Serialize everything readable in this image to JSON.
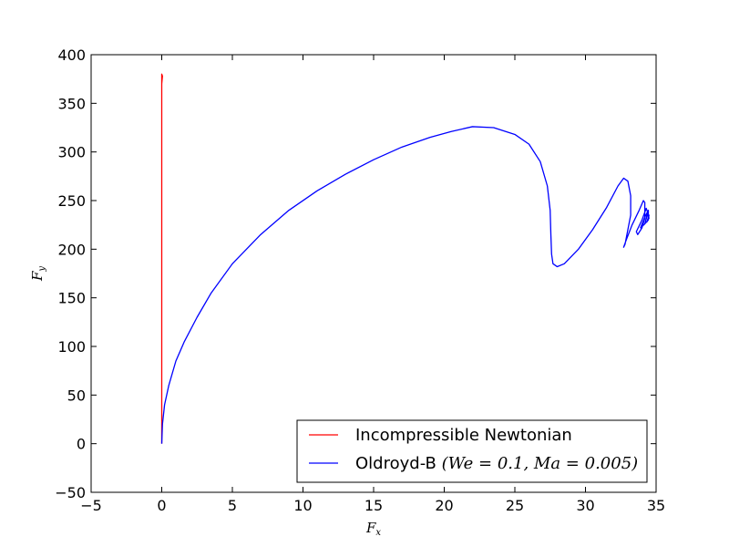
{
  "chart_data": {
    "type": "line",
    "title": "",
    "xlabel": "F",
    "xlabel_sub": "x",
    "ylabel": "F",
    "ylabel_sub": "y",
    "xlim": [
      -5,
      35
    ],
    "ylim": [
      -50,
      400
    ],
    "xticks": [
      -5,
      0,
      5,
      10,
      15,
      20,
      25,
      30,
      35
    ],
    "yticks": [
      -50,
      0,
      50,
      100,
      150,
      200,
      250,
      300,
      350,
      400
    ],
    "xtick_labels": [
      "−5",
      "0",
      "5",
      "10",
      "15",
      "20",
      "25",
      "30",
      "35"
    ],
    "ytick_labels": [
      "−50",
      "0",
      "50",
      "100",
      "150",
      "200",
      "250",
      "300",
      "350",
      "400"
    ],
    "grid": false,
    "legend_position": "bottom-right",
    "series": [
      {
        "name": "Incompressible Newtonian",
        "color": "#ff0000",
        "points": [
          [
            0.0,
            0
          ],
          [
            0.0,
            100
          ],
          [
            0.0,
            250
          ],
          [
            0.0,
            375
          ],
          [
            0.0,
            380
          ],
          [
            0.05,
            378
          ],
          [
            0.0,
            370
          ]
        ]
      },
      {
        "name_text": "Oldroyd-B ",
        "name_math": "(We = 0.1, Ma = 0.005)",
        "color": "#0000ff",
        "points": [
          [
            0.0,
            0
          ],
          [
            0.05,
            20
          ],
          [
            0.2,
            40
          ],
          [
            0.5,
            60
          ],
          [
            1.0,
            85
          ],
          [
            1.6,
            105
          ],
          [
            2.5,
            130
          ],
          [
            3.5,
            155
          ],
          [
            5.0,
            185
          ],
          [
            7.0,
            215
          ],
          [
            9.0,
            240
          ],
          [
            11.0,
            260
          ],
          [
            13.0,
            277
          ],
          [
            15.0,
            292
          ],
          [
            17.0,
            305
          ],
          [
            19.0,
            315
          ],
          [
            20.5,
            321
          ],
          [
            22.0,
            326
          ],
          [
            23.5,
            325
          ],
          [
            25.0,
            318
          ],
          [
            26.0,
            308
          ],
          [
            26.8,
            290
          ],
          [
            27.3,
            265
          ],
          [
            27.5,
            240
          ],
          [
            27.55,
            215
          ],
          [
            27.6,
            195
          ],
          [
            27.7,
            185
          ],
          [
            28.0,
            182
          ],
          [
            28.5,
            185
          ],
          [
            29.5,
            200
          ],
          [
            30.5,
            220
          ],
          [
            31.5,
            243
          ],
          [
            32.3,
            265
          ],
          [
            32.7,
            273
          ],
          [
            33.0,
            270
          ],
          [
            33.2,
            255
          ],
          [
            33.2,
            235
          ],
          [
            33.0,
            220
          ],
          [
            32.8,
            205
          ],
          [
            32.7,
            202
          ],
          [
            32.9,
            210
          ],
          [
            33.3,
            225
          ],
          [
            33.8,
            240
          ],
          [
            34.1,
            250
          ],
          [
            34.2,
            248
          ],
          [
            34.2,
            232
          ],
          [
            34.0,
            222
          ],
          [
            33.7,
            215
          ],
          [
            33.6,
            218
          ],
          [
            34.0,
            230
          ],
          [
            34.3,
            242
          ],
          [
            34.4,
            238
          ],
          [
            34.2,
            226
          ],
          [
            33.9,
            222
          ],
          [
            34.2,
            233
          ],
          [
            34.45,
            240
          ],
          [
            34.45,
            230
          ],
          [
            34.2,
            226
          ],
          [
            34.4,
            236
          ],
          [
            34.5,
            232
          ],
          [
            34.35,
            228
          ],
          [
            34.5,
            235
          ],
          [
            34.45,
            231
          ]
        ]
      }
    ]
  }
}
